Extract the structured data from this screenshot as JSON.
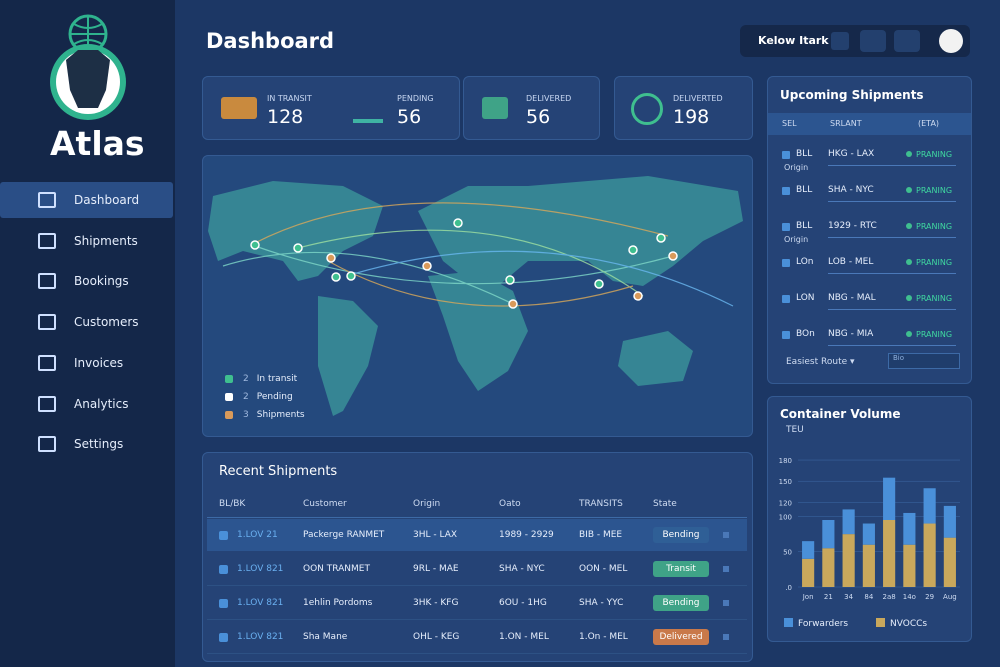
{
  "sidebar": {
    "brand": "Atlas",
    "nav": [
      "Dashboard",
      "Shipments",
      "Bookings",
      "Customers",
      "Invoices",
      "Analytics",
      "Settings"
    ]
  },
  "header": {
    "title": "Dashboard",
    "user": "Kelow Itark"
  },
  "stats": [
    {
      "label": "IN TRANSIT",
      "value": 128
    },
    {
      "label": "PENDING",
      "value": 56
    },
    {
      "label": "DELIVERED",
      "value": 56
    },
    {
      "label": "DELIVERTED",
      "value": 198
    }
  ],
  "map": {
    "legend": [
      {
        "count": 2,
        "label": "In transit",
        "color": "#3fbf8f"
      },
      {
        "count": 2,
        "label": "Pending",
        "color": "#ffffff"
      },
      {
        "count": 3,
        "label": "Shipments",
        "color": "#d99a5a"
      }
    ]
  },
  "upcoming": {
    "title": "Upcoming Shipments",
    "columns": [
      "SEL",
      "SRLANT",
      "(ETA)"
    ],
    "rows": [
      {
        "id": "BLL",
        "sub": "Origin",
        "route": "HKG - LAX",
        "status": "PRANING"
      },
      {
        "id": "BLL",
        "route": "SHA - NYC",
        "status": "PRANING"
      },
      {
        "id": "BLL",
        "sub": "Origin",
        "route": "1929 - RTC",
        "status": "PRANING"
      },
      {
        "id": "LOn",
        "route": "LOB - MEL",
        "status": "PRANING"
      },
      {
        "id": "LON",
        "route": "NBG - MAL",
        "status": "PRANING"
      },
      {
        "id": "BOn",
        "route": "NBG - MIA",
        "status": "PRANING"
      }
    ],
    "footer": "Easiest Route",
    "search": "Bio"
  },
  "recent": {
    "title": "Recent Shipments",
    "columns": [
      "BL/BK",
      "Customer",
      "Origin",
      "Oato",
      "TRANSITS",
      "State"
    ],
    "rows": [
      [
        "1.LOV 21",
        "Packerge RANMET",
        "3HL - LAX",
        "1989 - 2929",
        "BIB - MEE",
        "Bending"
      ],
      [
        "1.LOV 821",
        "OON TRANMET",
        "9RL - MAE",
        "SHA - NYC",
        "OON - MEL",
        "Transit"
      ],
      [
        "1.LOV 821",
        "1ehlin Pordoms",
        "3HK - KFG",
        "6OU - 1HG",
        "SHA - YYC",
        "Bending"
      ],
      [
        "1.LOV 821",
        "Sha Mane",
        "OHL - KEG",
        "1.ON - MEL",
        "1.On - MEL",
        "Delivered"
      ]
    ],
    "state_colors": [
      "#2f5f96",
      "#3fa387",
      "#3fa387",
      "#c9794a"
    ]
  },
  "volume": {
    "chart_data": {
      "type": "bar",
      "title": "Container Volume",
      "ylabel": "TEU",
      "categories": [
        "Jon",
        "21",
        "34",
        "84",
        "2a8",
        "14o",
        "29",
        "Aug"
      ],
      "series": [
        {
          "name": "Forwarders",
          "color": "#4a90d9",
          "values": [
            25,
            40,
            35,
            30,
            60,
            45,
            50,
            45
          ]
        },
        {
          "name": "NVOCCs",
          "color": "#c9a85c",
          "values": [
            40,
            55,
            75,
            60,
            95,
            60,
            90,
            70
          ]
        }
      ],
      "stacked": true,
      "ylim": [
        0,
        190
      ],
      "yticks": [
        {
          "value": 0,
          "label": ".0"
        },
        50,
        100,
        120,
        150,
        180
      ]
    }
  }
}
